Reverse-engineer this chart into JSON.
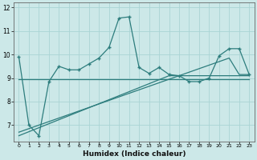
{
  "x": [
    0,
    1,
    2,
    3,
    4,
    5,
    6,
    7,
    8,
    9,
    10,
    11,
    12,
    13,
    14,
    15,
    16,
    17,
    18,
    19,
    20,
    21,
    22,
    23
  ],
  "y_main": [
    9.9,
    7.0,
    6.55,
    8.85,
    9.5,
    9.35,
    9.35,
    9.6,
    9.85,
    10.3,
    11.55,
    11.6,
    9.45,
    9.2,
    9.45,
    9.15,
    9.1,
    8.85,
    8.85,
    9.0,
    9.95,
    10.25,
    10.25,
    9.15
  ],
  "y_horiz": [
    8.95,
    8.95,
    8.95,
    8.95,
    8.95,
    8.95,
    8.95,
    8.95,
    8.95,
    8.95,
    8.95,
    8.95,
    8.95,
    8.95,
    8.95,
    8.95,
    8.95,
    8.95,
    8.95,
    8.95,
    8.95,
    8.95,
    8.95,
    8.95
  ],
  "y_slope1": [
    6.55,
    6.72,
    6.89,
    7.06,
    7.23,
    7.4,
    7.57,
    7.74,
    7.91,
    8.08,
    8.25,
    8.42,
    8.59,
    8.76,
    8.93,
    9.1,
    9.1,
    9.1,
    9.1,
    9.1,
    9.1,
    9.1,
    9.1,
    9.1
  ],
  "y_slope2": [
    6.7,
    6.85,
    7.0,
    7.15,
    7.3,
    7.45,
    7.6,
    7.75,
    7.9,
    8.05,
    8.2,
    8.35,
    8.5,
    8.65,
    8.8,
    8.95,
    9.1,
    9.25,
    9.4,
    9.55,
    9.7,
    9.85,
    9.15,
    9.15
  ],
  "color": "#2d7d7d",
  "bg_color": "#cce8e8",
  "grid_color": "#aad4d4",
  "xlabel": "Humidex (Indice chaleur)",
  "ylim": [
    6.3,
    12.2
  ],
  "xlim": [
    -0.5,
    23.5
  ],
  "yticks": [
    7,
    8,
    9,
    10,
    11,
    12
  ],
  "xticks": [
    0,
    1,
    2,
    3,
    4,
    5,
    6,
    7,
    8,
    9,
    10,
    11,
    12,
    13,
    14,
    15,
    16,
    17,
    18,
    19,
    20,
    21,
    22,
    23
  ]
}
